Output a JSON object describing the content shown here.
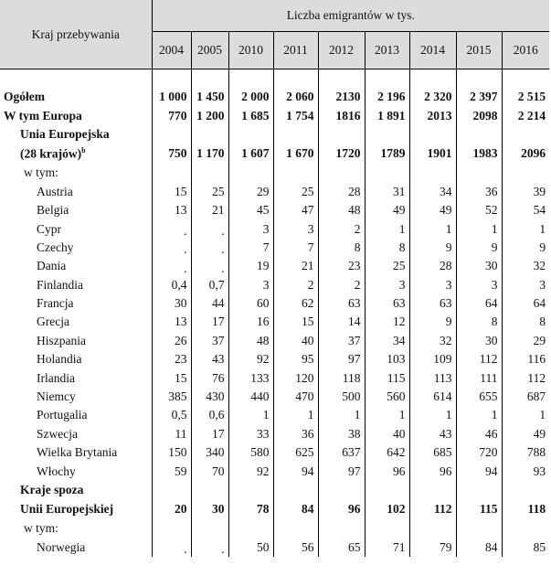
{
  "header": {
    "country_col": "Kraj przebywania",
    "group_title": "Liczba emigrantów w tys.",
    "years": [
      "2004",
      "2005",
      "2010",
      "2011",
      "2012",
      "2013",
      "2014",
      "2015",
      "2016"
    ]
  },
  "rows": [
    {
      "label": "Ogółem",
      "values": [
        "1 000",
        "1 450",
        "2 000",
        "2 060",
        "2130",
        "2 196",
        "2 320",
        "2 397",
        "2 515"
      ]
    },
    {
      "label": "W tym Europa",
      "values": [
        "770",
        "1 200",
        "1 685",
        "1 754",
        "1816",
        "1 891",
        "2013",
        "2098",
        "2 214"
      ]
    },
    {
      "label_top": "Unia Europejska",
      "label": "(28 krajów)",
      "label_sup": "b",
      "values": [
        "750",
        "1 170",
        "1 607",
        "1 670",
        "1720",
        "1789",
        "1901",
        "1983",
        "2096"
      ]
    },
    {
      "label": "w tym:",
      "values": [
        "",
        "",
        "",
        "",
        "",
        "",
        "",
        "",
        ""
      ]
    },
    {
      "label": "Austria",
      "values": [
        "15",
        "25",
        "29",
        "25",
        "28",
        "31",
        "34",
        "36",
        "39"
      ]
    },
    {
      "label": "Belgia",
      "values": [
        "13",
        "21",
        "45",
        "47",
        "48",
        "49",
        "49",
        "52",
        "54"
      ]
    },
    {
      "label": "Cypr",
      "values": [
        ".",
        ".",
        "3",
        "3",
        "2",
        "1",
        "1",
        "1",
        "1"
      ]
    },
    {
      "label": "Czechy",
      "values": [
        ".",
        ".",
        "7",
        "7",
        "8",
        "8",
        "9",
        "9",
        "9"
      ]
    },
    {
      "label": "Dania",
      "values": [
        ".",
        ".",
        "19",
        "21",
        "23",
        "25",
        "28",
        "30",
        "32"
      ]
    },
    {
      "label": "Finlandia",
      "values": [
        "0,4",
        "0,7",
        "3",
        "2",
        "2",
        "3",
        "3",
        "3",
        "3"
      ]
    },
    {
      "label": "Francja",
      "values": [
        "30",
        "44",
        "60",
        "62",
        "63",
        "63",
        "63",
        "64",
        "64"
      ]
    },
    {
      "label": "Grecja",
      "values": [
        "13",
        "17",
        "16",
        "15",
        "14",
        "12",
        "9",
        "8",
        "8"
      ]
    },
    {
      "label": "Hiszpania",
      "values": [
        "26",
        "37",
        "48",
        "40",
        "37",
        "34",
        "32",
        "30",
        "29"
      ]
    },
    {
      "label": "Holandia",
      "values": [
        "23",
        "43",
        "92",
        "95",
        "97",
        "103",
        "109",
        "112",
        "116"
      ]
    },
    {
      "label": "Irlandia",
      "values": [
        "15",
        "76",
        "133",
        "120",
        "118",
        "115",
        "113",
        "111",
        "112"
      ]
    },
    {
      "label": "Niemcy",
      "values": [
        "385",
        "430",
        "440",
        "470",
        "500",
        "560",
        "614",
        "655",
        "687"
      ]
    },
    {
      "label": "Portugalia",
      "values": [
        "0,5",
        "0,6",
        "1",
        "1",
        "1",
        "1",
        "1",
        "1",
        "1"
      ]
    },
    {
      "label": "Szwecja",
      "values": [
        "11",
        "17",
        "33",
        "36",
        "38",
        "40",
        "43",
        "46",
        "49"
      ]
    },
    {
      "label": "Wielka Brytania",
      "values": [
        "150",
        "340",
        "580",
        "625",
        "637",
        "642",
        "685",
        "720",
        "788"
      ]
    },
    {
      "label": "Włochy",
      "values": [
        "59",
        "70",
        "92",
        "94",
        "97",
        "96",
        "96",
        "94",
        "93"
      ]
    },
    {
      "label_top": "Kraje spoza",
      "label": "Unii Europejskiej",
      "values": [
        "20",
        "30",
        "78",
        "84",
        "96",
        "102",
        "112",
        "115",
        "118"
      ]
    },
    {
      "label": "w tym:",
      "values": [
        "",
        "",
        "",
        "",
        "",
        "",
        "",
        "",
        ""
      ]
    },
    {
      "label": "Norwegia",
      "values": [
        ".",
        ".",
        "50",
        "56",
        "65",
        "71",
        "79",
        "84",
        "85"
      ]
    }
  ]
}
